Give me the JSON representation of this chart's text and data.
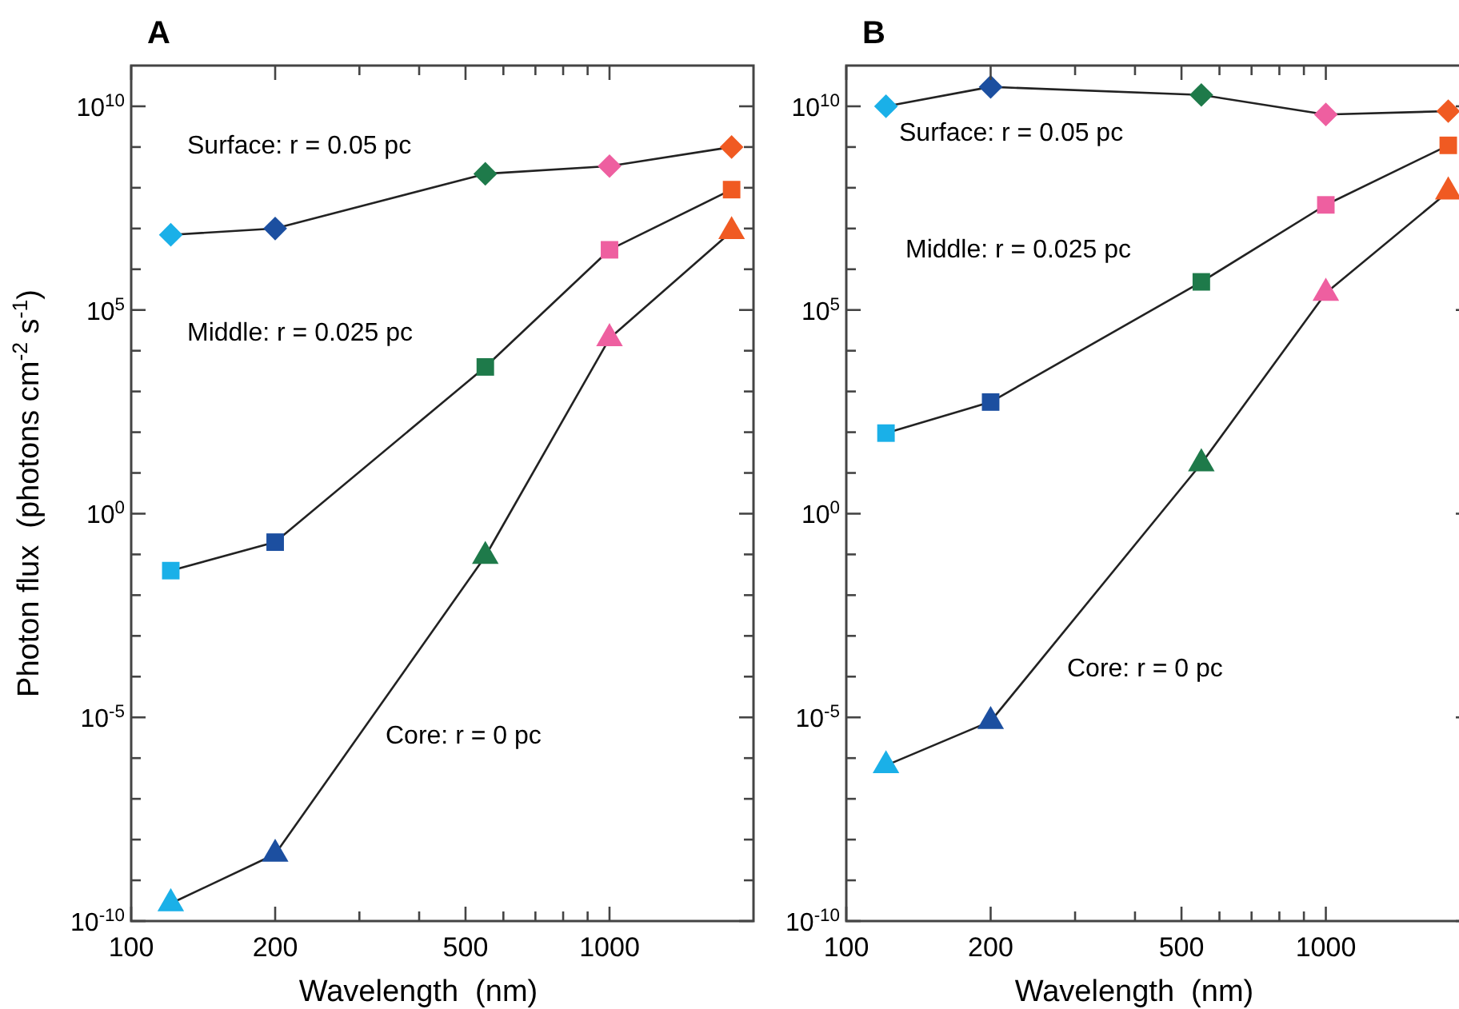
{
  "chart_data": [
    {
      "type": "line",
      "title": "A",
      "xlabel": "Wavelength  (nm)",
      "ylabel": "Photon flux  (photons cm$^{-2}$ s$^{-1}$)",
      "log": "xy",
      "line_style": "solid",
      "xlim": [
        100,
        2000
      ],
      "xticks": [
        100,
        200,
        {
          "value": 300,
          "label": null
        },
        {
          "value": 400,
          "label": null
        },
        500,
        {
          "value": 600,
          "label": null
        },
        {
          "value": 700,
          "label": null
        },
        {
          "value": 800,
          "label": null
        },
        {
          "value": 900,
          "label": null
        },
        1000
      ],
      "ylim": [
        1e-10,
        100000000000.0
      ],
      "yticks": [
        {
          "value": 1e-10,
          "label": "10$^{-10}$"
        },
        {
          "value": 1e-09,
          "label": null
        },
        {
          "value": 1e-08,
          "label": null
        },
        {
          "value": 1e-07,
          "label": null
        },
        {
          "value": 1e-06,
          "label": null
        },
        {
          "value": 1e-05,
          "label": "10$^{-5}$"
        },
        {
          "value": 0.0001,
          "label": null
        },
        {
          "value": 0.001,
          "label": null
        },
        {
          "value": 0.01,
          "label": null
        },
        {
          "value": 0.1,
          "label": null
        },
        {
          "value": 1,
          "label": "10$^{0}$"
        },
        {
          "value": 10,
          "label": null
        },
        {
          "value": 100,
          "label": null
        },
        {
          "value": 1000,
          "label": null
        },
        {
          "value": 10000,
          "label": null
        },
        {
          "value": 100000,
          "label": "10$^{5}$"
        },
        {
          "value": 1000000.0,
          "label": null
        },
        {
          "value": 10000000.0,
          "label": null
        },
        {
          "value": 100000000.0,
          "label": null
        },
        {
          "value": 1000000000.0,
          "label": null
        },
        {
          "value": 10000000000.0,
          "label": "10$^{10}$"
        }
      ],
      "x": [
        121,
        200,
        550,
        1000,
        1800
      ],
      "series": [
        {
          "name": "Surface: r = 0.05 pc",
          "color": "#222222",
          "marker": "diamond",
          "colors": [
            "#1ab0e8",
            "#1c4fa0",
            "#1e7a4a",
            "#ee5fa0",
            "#f05a22"
          ],
          "values": [
            7000000.0,
            10000000.0,
            220000000.0,
            340000000.0,
            1000000000.0
          ]
        },
        {
          "name": "Middle: r = 0.025 pc",
          "color": "#222222",
          "marker": "square",
          "colors": [
            "#1ab0e8",
            "#1c4fa0",
            "#1e7a4a",
            "#ee5fa0",
            "#f05a22"
          ],
          "values": [
            0.04,
            0.2,
            4000,
            3000000.0,
            90000000.0
          ]
        },
        {
          "name": "Core: r = 0 pc",
          "color": "#222222",
          "marker": "triangle",
          "colors": [
            "#1ab0e8",
            "#1c4fa0",
            "#1e7a4a",
            "#ee5fa0",
            "#f05a22"
          ],
          "values": [
            2.7e-10,
            4.4e-09,
            0.09,
            20000.0,
            8500000.0
          ]
        }
      ]
    },
    {
      "type": "line",
      "title": "B",
      "xlabel": "Wavelength  (nm)",
      "log": "xy",
      "line_style": "solid",
      "xlim": [
        100,
        2000
      ],
      "xticks": [
        100,
        200,
        {
          "value": 300,
          "label": null
        },
        {
          "value": 400,
          "label": null
        },
        500,
        {
          "value": 600,
          "label": null
        },
        {
          "value": 700,
          "label": null
        },
        {
          "value": 800,
          "label": null
        },
        {
          "value": 900,
          "label": null
        },
        1000
      ],
      "ylim": [
        1e-10,
        100000000000.0
      ],
      "yticks": [
        {
          "value": 1e-10,
          "label": "10$^{-10}$"
        },
        {
          "value": 1e-09,
          "label": null
        },
        {
          "value": 1e-08,
          "label": null
        },
        {
          "value": 1e-07,
          "label": null
        },
        {
          "value": 1e-06,
          "label": null
        },
        {
          "value": 1e-05,
          "label": "10$^{-5}$"
        },
        {
          "value": 0.0001,
          "label": null
        },
        {
          "value": 0.001,
          "label": null
        },
        {
          "value": 0.01,
          "label": null
        },
        {
          "value": 0.1,
          "label": null
        },
        {
          "value": 1,
          "label": "10$^{0}$"
        },
        {
          "value": 10,
          "label": null
        },
        {
          "value": 100,
          "label": null
        },
        {
          "value": 1000,
          "label": null
        },
        {
          "value": 10000,
          "label": null
        },
        {
          "value": 100000,
          "label": "10$^{5}$"
        },
        {
          "value": 1000000.0,
          "label": null
        },
        {
          "value": 10000000.0,
          "label": null
        },
        {
          "value": 100000000.0,
          "label": null
        },
        {
          "value": 1000000000.0,
          "label": null
        },
        {
          "value": 10000000000.0,
          "label": "10$^{10}$"
        }
      ],
      "x": [
        121,
        200,
        550,
        1000,
        1800
      ],
      "series": [
        {
          "name": "Surface: r = 0.05 pc",
          "color": "#222222",
          "marker": "diamond",
          "colors": [
            "#1ab0e8",
            "#1c4fa0",
            "#1e7a4a",
            "#ee5fa0",
            "#f05a22"
          ],
          "values": [
            10000000000.0,
            30000000000.0,
            19000000000.0,
            6300000000.0,
            7600000000.0
          ]
        },
        {
          "name": "Middle: r = 0.025 pc",
          "color": "#222222",
          "marker": "square",
          "colors": [
            "#1ab0e8",
            "#1c4fa0",
            "#1e7a4a",
            "#ee5fa0",
            "#f05a22"
          ],
          "values": [
            95,
            550,
            490000.0,
            38000000.0,
            1100000000.0
          ]
        },
        {
          "name": "Core: r = 0 pc",
          "color": "#222222",
          "marker": "triangle",
          "colors": [
            "#1ab0e8",
            "#1c4fa0",
            "#1e7a4a",
            "#ee5fa0",
            "#f05a22"
          ],
          "values": [
            6.6e-07,
            8e-06,
            17,
            260000.0,
            80000000.0
          ]
        }
      ]
    }
  ]
}
